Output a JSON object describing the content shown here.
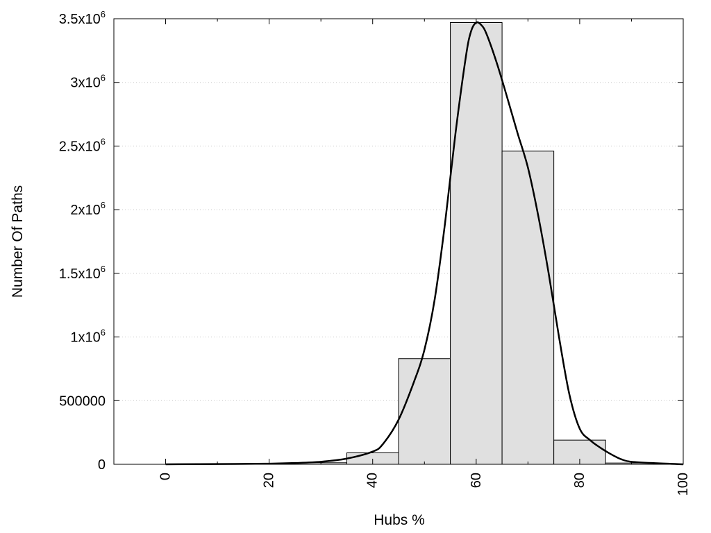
{
  "chart_data": {
    "type": "bar",
    "title": "",
    "xlabel": "Hubs %",
    "ylabel": "Number Of Paths",
    "xlim": [
      -10,
      100
    ],
    "ylim": [
      0,
      3500000
    ],
    "grid": "horizontal-dotted",
    "x_ticks": [
      {
        "value": 0,
        "label": "0"
      },
      {
        "value": 20,
        "label": "20"
      },
      {
        "value": 40,
        "label": "40"
      },
      {
        "value": 60,
        "label": "60"
      },
      {
        "value": 80,
        "label": "80"
      },
      {
        "value": 100,
        "label": "100"
      }
    ],
    "y_ticks": [
      {
        "value": 0,
        "label": "0"
      },
      {
        "value": 500000,
        "label": "500000"
      },
      {
        "value": 1000000,
        "label": "1x10",
        "exp": "6"
      },
      {
        "value": 1500000,
        "label": "1.5x10",
        "exp": "6"
      },
      {
        "value": 2000000,
        "label": "2x10",
        "exp": "6"
      },
      {
        "value": 2500000,
        "label": "2.5x10",
        "exp": "6"
      },
      {
        "value": 3000000,
        "label": "3x10",
        "exp": "6"
      },
      {
        "value": 3500000,
        "label": "3.5x10",
        "exp": "6"
      }
    ],
    "bars": [
      {
        "x0": -5,
        "x1": 5,
        "value": 0
      },
      {
        "x0": 5,
        "x1": 15,
        "value": 0
      },
      {
        "x0": 15,
        "x1": 25,
        "value": 2000
      },
      {
        "x0": 25,
        "x1": 35,
        "value": 12000
      },
      {
        "x0": 35,
        "x1": 45,
        "value": 90000
      },
      {
        "x0": 45,
        "x1": 55,
        "value": 830000
      },
      {
        "x0": 55,
        "x1": 65,
        "value": 3470000
      },
      {
        "x0": 65,
        "x1": 75,
        "value": 2460000
      },
      {
        "x0": 75,
        "x1": 85,
        "value": 190000
      },
      {
        "x0": 85,
        "x1": 95,
        "value": 10000
      },
      {
        "x0": 95,
        "x1": 105,
        "value": 0
      }
    ],
    "curve": {
      "x": [
        0,
        10,
        20,
        25,
        30,
        35,
        40,
        42,
        45,
        48,
        50,
        52,
        54,
        56,
        58,
        59,
        60,
        61,
        62,
        64,
        66,
        68,
        70,
        72,
        74,
        76,
        78,
        80,
        82,
        84,
        86,
        88,
        90,
        95,
        100
      ],
      "y": [
        0,
        2000,
        5000,
        10000,
        20000,
        45000,
        100000,
        160000,
        350000,
        650000,
        900000,
        1300000,
        1900000,
        2600000,
        3200000,
        3400000,
        3470000,
        3450000,
        3380000,
        3150000,
        2880000,
        2600000,
        2330000,
        1950000,
        1500000,
        1000000,
        550000,
        280000,
        190000,
        130000,
        80000,
        40000,
        20000,
        8000,
        0
      ]
    }
  }
}
